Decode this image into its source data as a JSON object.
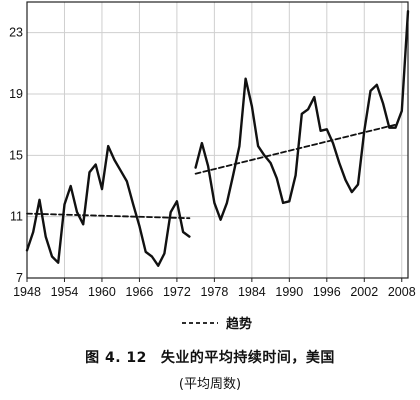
{
  "chart_data": {
    "type": "line",
    "title": "失业的平均持续时间，美国",
    "figure_number": "图 4. 12",
    "subtitle": "(平均周数)",
    "xlim": [
      1948,
      2009
    ],
    "ylim": [
      7,
      25
    ],
    "x_ticks": [
      1948,
      1954,
      1960,
      1966,
      1972,
      1978,
      1984,
      1990,
      1996,
      2002,
      2008
    ],
    "y_ticks": [
      7,
      11,
      15,
      19,
      23
    ],
    "grid": true,
    "legend": {
      "position": "bottom-center",
      "entries": [
        {
          "label": "趋势",
          "style": "dashed"
        }
      ]
    },
    "series": [
      {
        "segments": [
          {
            "x": [
              1948,
              1949,
              1950,
              1951,
              1952,
              1953,
              1954,
              1955,
              1956,
              1957,
              1958,
              1959,
              1960,
              1961,
              1962,
              1963,
              1964,
              1965,
              1966,
              1967,
              1968,
              1969,
              1970,
              1971,
              1972,
              1973,
              1974
            ],
            "y": [
              8.8,
              10.0,
              12.1,
              9.7,
              8.4,
              8.0,
              11.8,
              13.0,
              11.3,
              10.5,
              13.9,
              14.4,
              12.8,
              15.6,
              14.7,
              14.0,
              13.3,
              11.8,
              10.4,
              8.7,
              8.4,
              7.8,
              8.6,
              11.3,
              12.0,
              10.0,
              9.7
            ]
          },
          {
            "x": [
              1975,
              1976,
              1977,
              1978,
              1979,
              1980,
              1981,
              1982,
              1983,
              1984,
              1985,
              1986,
              1987,
              1988,
              1989,
              1990,
              1991,
              1992,
              1993,
              1994,
              1995,
              1996,
              1997,
              1998,
              1999,
              2000,
              2001,
              2002,
              2003,
              2004,
              2005,
              2006,
              2007,
              2008,
              2009
            ],
            "y": [
              14.2,
              15.8,
              14.3,
              11.9,
              10.8,
              11.9,
              13.7,
              15.6,
              20.0,
              18.2,
              15.6,
              15.0,
              14.5,
              13.5,
              11.9,
              12.0,
              13.7,
              17.7,
              18.0,
              18.8,
              16.6,
              16.7,
              15.8,
              14.5,
              13.4,
              12.6,
              13.1,
              16.6,
              19.2,
              19.6,
              18.4,
              16.8,
              16.8,
              17.9,
              24.4
            ]
          }
        ]
      },
      {
        "name": "趋势",
        "style": "dashed",
        "segments": [
          {
            "x": [
              1948,
              1974
            ],
            "y": [
              11.2,
              10.9
            ]
          },
          {
            "x": [
              1975,
              2007
            ],
            "y": [
              13.8,
              17.0
            ]
          }
        ]
      }
    ]
  }
}
